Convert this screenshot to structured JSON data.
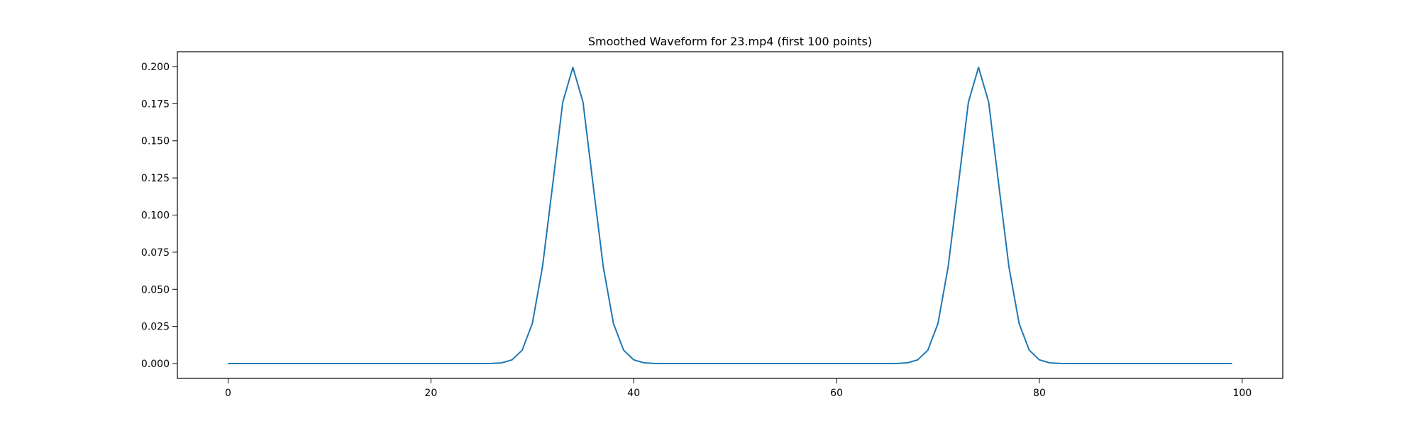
{
  "chart_data": {
    "type": "line",
    "title": "Smoothed Waveform for 23.mp4 (first 100 points)",
    "xlabel": "",
    "ylabel": "",
    "xlim": [
      -5,
      104
    ],
    "ylim": [
      -0.01,
      0.21
    ],
    "x_ticks": [
      0,
      20,
      40,
      60,
      80,
      100
    ],
    "x_tick_labels": [
      "0",
      "20",
      "40",
      "60",
      "80",
      "100"
    ],
    "y_ticks": [
      0.0,
      0.025,
      0.05,
      0.075,
      0.1,
      0.125,
      0.15,
      0.175,
      0.2
    ],
    "y_tick_labels": [
      "0.000",
      "0.025",
      "0.050",
      "0.075",
      "0.100",
      "0.125",
      "0.150",
      "0.175",
      "0.200"
    ],
    "grid": false,
    "series": [
      {
        "color": "#1f77b4",
        "x_start": 0,
        "x_step": 1,
        "values": [
          0,
          0,
          0,
          0,
          0,
          0,
          0,
          0,
          0,
          0,
          0,
          0,
          0,
          0,
          0,
          0,
          0,
          0,
          0,
          0,
          0,
          0,
          0,
          0,
          0,
          0,
          0.0001,
          0.0005,
          0.0025,
          0.009,
          0.027,
          0.065,
          0.12,
          0.176,
          0.1995,
          0.176,
          0.12,
          0.065,
          0.027,
          0.009,
          0.0025,
          0.0005,
          0.0001,
          0,
          0,
          0,
          0,
          0,
          0,
          0,
          0,
          0,
          0,
          0,
          0,
          0,
          0,
          0,
          0,
          0,
          0,
          0,
          0,
          0,
          0,
          0,
          0.0001,
          0.0005,
          0.0025,
          0.009,
          0.027,
          0.065,
          0.12,
          0.176,
          0.1995,
          0.176,
          0.12,
          0.065,
          0.027,
          0.009,
          0.0025,
          0.0005,
          0.0001,
          0,
          0,
          0,
          0,
          0,
          0,
          0,
          0,
          0,
          0,
          0,
          0,
          0,
          0,
          0,
          0,
          0
        ]
      }
    ]
  }
}
